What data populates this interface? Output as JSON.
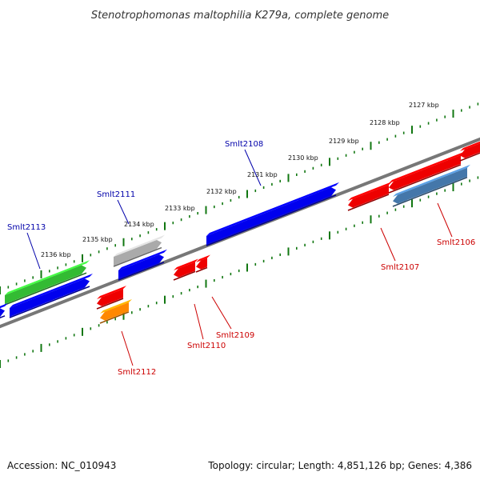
{
  "title": "Stenotrophomonas maltophilia K279a, complete genome",
  "footer": {
    "accession": "Accession: NC_010943",
    "summary": "Topology: circular; Length: 4,851,126 bp; Genes: 4,386"
  },
  "colors": {
    "forward": "#0000ee",
    "reverse": "#ee0000",
    "green": "#33bb33",
    "gray": "#aaaaaa",
    "orange": "#ff8800",
    "steel": "#4477aa",
    "backbone": "#777777",
    "ticks": "#117711",
    "label_forward": "#0000aa",
    "label_reverse": "#cc0000"
  },
  "kbp_labels": [
    "2127 kbp",
    "2128 kbp",
    "2129 kbp",
    "2130 kbp",
    "2131 kbp",
    "2132 kbp",
    "2133 kbp",
    "2134 kbp",
    "2135 kbp",
    "2136 kbp"
  ],
  "gene_labels": {
    "forward": [
      "Smlt2108",
      "Smlt2111",
      "Smlt2113"
    ],
    "reverse": [
      "Smlt2106",
      "Smlt2107",
      "Smlt2109",
      "Smlt2110",
      "Smlt2112"
    ]
  }
}
